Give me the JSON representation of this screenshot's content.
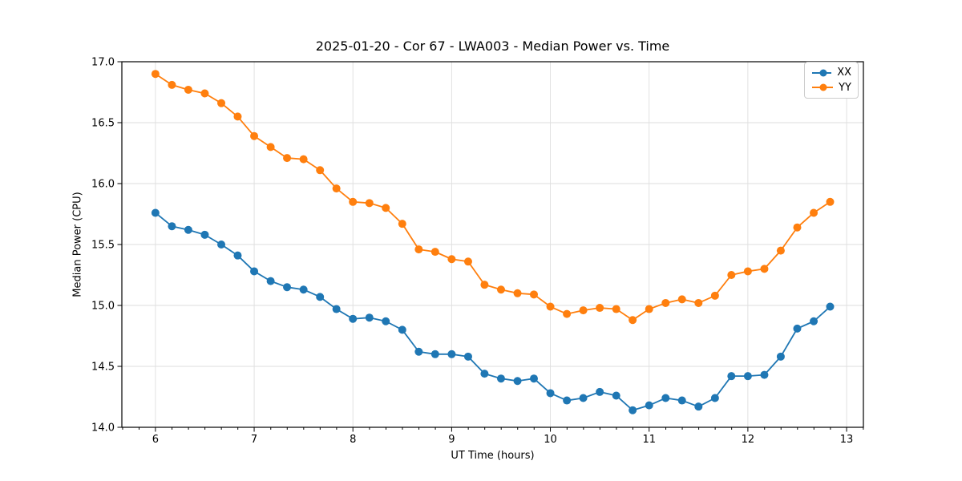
{
  "chart_data": {
    "type": "line",
    "title": "2025-01-20 - Cor 67 - LWA003 - Median Power vs. Time",
    "xlabel": "UT Time (hours)",
    "ylabel": "Median Power (CPU)",
    "xlim": [
      5.66,
      13.17
    ],
    "ylim": [
      14.0,
      17.0
    ],
    "x_ticks": [
      6,
      7,
      8,
      9,
      10,
      11,
      12,
      13
    ],
    "x_tick_labels": [
      "6",
      "7",
      "8",
      "9",
      "10",
      "11",
      "12",
      "13"
    ],
    "x_minor_tick_interval_hours": 0.1667,
    "y_ticks": [
      14.0,
      14.5,
      15.0,
      15.5,
      16.0,
      16.5,
      17.0
    ],
    "y_tick_labels": [
      "14.0",
      "14.5",
      "15.0",
      "15.5",
      "16.0",
      "16.5",
      "17.0"
    ],
    "grid": true,
    "legend_position": "upper right",
    "x": [
      6.0,
      6.167,
      6.333,
      6.5,
      6.667,
      6.833,
      7.0,
      7.167,
      7.333,
      7.5,
      7.667,
      7.833,
      8.0,
      8.167,
      8.333,
      8.5,
      8.667,
      8.833,
      9.0,
      9.167,
      9.333,
      9.5,
      9.667,
      9.833,
      10.0,
      10.167,
      10.333,
      10.5,
      10.667,
      10.833,
      11.0,
      11.167,
      11.333,
      11.5,
      11.667,
      11.833,
      12.0,
      12.167,
      12.333,
      12.5,
      12.667,
      12.833
    ],
    "series": [
      {
        "name": "XX",
        "color": "#1f77b4",
        "values": [
          15.76,
          15.65,
          15.62,
          15.58,
          15.5,
          15.41,
          15.28,
          15.2,
          15.15,
          15.13,
          15.07,
          14.97,
          14.89,
          14.9,
          14.87,
          14.8,
          14.62,
          14.6,
          14.6,
          14.58,
          14.44,
          14.4,
          14.38,
          14.4,
          14.28,
          14.22,
          14.24,
          14.29,
          14.26,
          14.14,
          14.18,
          14.24,
          14.22,
          14.17,
          14.24,
          14.42,
          14.42,
          14.43,
          14.58,
          14.81,
          14.87,
          14.99
        ]
      },
      {
        "name": "YY",
        "color": "#ff7f0e",
        "values": [
          16.9,
          16.81,
          16.77,
          16.74,
          16.66,
          16.55,
          16.39,
          16.3,
          16.21,
          16.2,
          16.11,
          15.96,
          15.85,
          15.84,
          15.8,
          15.67,
          15.46,
          15.44,
          15.38,
          15.36,
          15.17,
          15.13,
          15.1,
          15.09,
          14.99,
          14.93,
          14.96,
          14.98,
          14.97,
          14.88,
          14.97,
          15.02,
          15.05,
          15.02,
          15.08,
          15.25,
          15.28,
          15.3,
          15.45,
          15.64,
          15.76,
          15.85
        ]
      }
    ],
    "style": {
      "grid_color": "#dedede",
      "spine_color": "#000000",
      "background": "#ffffff"
    }
  }
}
